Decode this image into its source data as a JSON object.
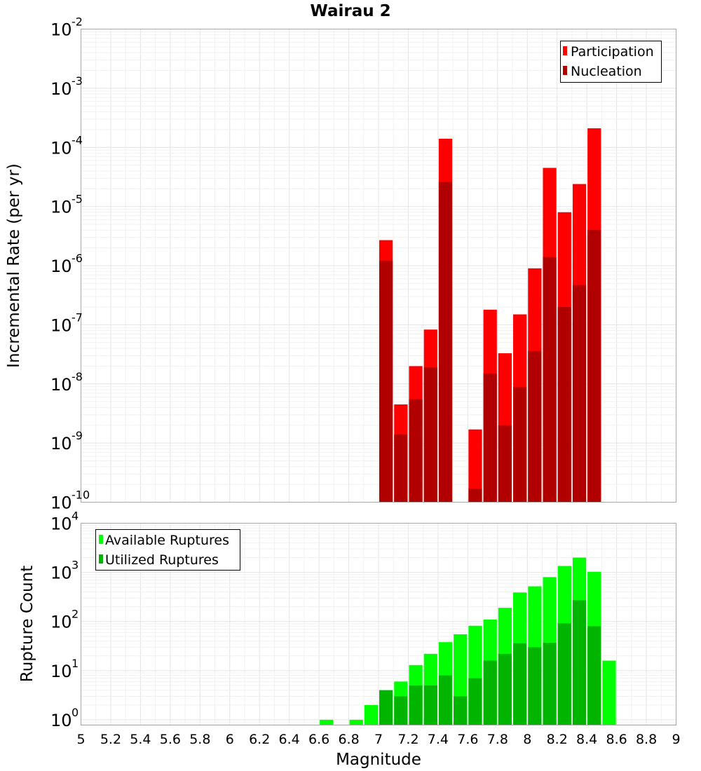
{
  "title": "Wairau 2",
  "xlabel": "Magnitude",
  "x_ticks": [
    "5",
    "5.2",
    "5.4",
    "5.6",
    "5.8",
    "6",
    "6.2",
    "6.4",
    "6.6",
    "6.8",
    "7",
    "7.2",
    "7.4",
    "7.6",
    "7.8",
    "8",
    "8.2",
    "8.4",
    "8.6",
    "8.8",
    "9"
  ],
  "colors": {
    "participation": "#ff0000",
    "nucleation": "#b00000",
    "available": "#00ff00",
    "utilized": "#00b400"
  },
  "chart_data": [
    {
      "type": "bar",
      "scale": "log",
      "ylabel": "Incremental Rate (per yr)",
      "xlim": [
        5,
        9
      ],
      "ylim": [
        1e-10,
        0.01
      ],
      "y_ticks": [
        {
          "base": "10",
          "exp": "-2"
        },
        {
          "base": "10",
          "exp": "-3"
        },
        {
          "base": "10",
          "exp": "-4"
        },
        {
          "base": "10",
          "exp": "-5"
        },
        {
          "base": "10",
          "exp": "-6"
        },
        {
          "base": "10",
          "exp": "-7"
        },
        {
          "base": "10",
          "exp": "-8"
        },
        {
          "base": "10",
          "exp": "-9"
        },
        {
          "base": "10",
          "exp": "-10"
        }
      ],
      "grid": true,
      "legend_position": "top-right",
      "series": [
        {
          "name": "Participation",
          "color": "#ff0000",
          "x": [
            7.0,
            7.1,
            7.2,
            7.3,
            7.4,
            7.6,
            7.7,
            7.8,
            7.9,
            8.0,
            8.1,
            8.2,
            8.3,
            8.4
          ],
          "values": [
            2.7e-06,
            4.5e-09,
            2e-08,
            8.3e-08,
            0.00014,
            1.7e-09,
            1.8e-07,
            3.3e-08,
            1.5e-07,
            9e-07,
            4.5e-05,
            8e-06,
            2.4e-05,
            0.00021
          ]
        },
        {
          "name": "Nucleation",
          "color": "#b00000",
          "x": [
            7.0,
            7.1,
            7.2,
            7.3,
            7.4,
            7.6,
            7.7,
            7.8,
            7.9,
            8.0,
            8.1,
            8.2,
            8.3,
            8.4
          ],
          "values": [
            1.2e-06,
            1.4e-09,
            5.5e-09,
            1.9e-08,
            2.6e-05,
            1.7e-10,
            1.5e-08,
            2e-09,
            8.8e-09,
            3.6e-08,
            1.4e-06,
            2e-07,
            4.7e-07,
            4e-06
          ]
        }
      ]
    },
    {
      "type": "bar",
      "scale": "log",
      "ylabel": "Rupture Count",
      "xlabel": "Magnitude",
      "xlim": [
        5,
        9
      ],
      "ylim": [
        0.78,
        10000
      ],
      "y_ticks": [
        {
          "base": "10",
          "exp": "4"
        },
        {
          "base": "10",
          "exp": "3"
        },
        {
          "base": "10",
          "exp": "2"
        },
        {
          "base": "10",
          "exp": "1"
        },
        {
          "base": "10",
          "exp": "0"
        }
      ],
      "grid": true,
      "legend_position": "top-left",
      "series": [
        {
          "name": "Available Ruptures",
          "color": "#00ff00",
          "x": [
            6.6,
            6.8,
            6.9,
            7.0,
            7.1,
            7.2,
            7.3,
            7.4,
            7.5,
            7.6,
            7.7,
            7.8,
            7.9,
            8.0,
            8.1,
            8.2,
            8.3,
            8.4,
            8.5
          ],
          "values": [
            1,
            1,
            2,
            4,
            6,
            13,
            22,
            38,
            55,
            82,
            110,
            190,
            390,
            520,
            800,
            1350,
            2000,
            1030,
            16
          ]
        },
        {
          "name": "Utilized Ruptures",
          "color": "#00b400",
          "x": [
            7.0,
            7.1,
            7.2,
            7.3,
            7.4,
            7.5,
            7.6,
            7.7,
            7.8,
            7.9,
            8.0,
            8.1,
            8.2,
            8.3,
            8.4
          ],
          "values": [
            4,
            3,
            5,
            5,
            8,
            3,
            7,
            16,
            22,
            36,
            30,
            37,
            92,
            270,
            80
          ]
        }
      ]
    }
  ]
}
